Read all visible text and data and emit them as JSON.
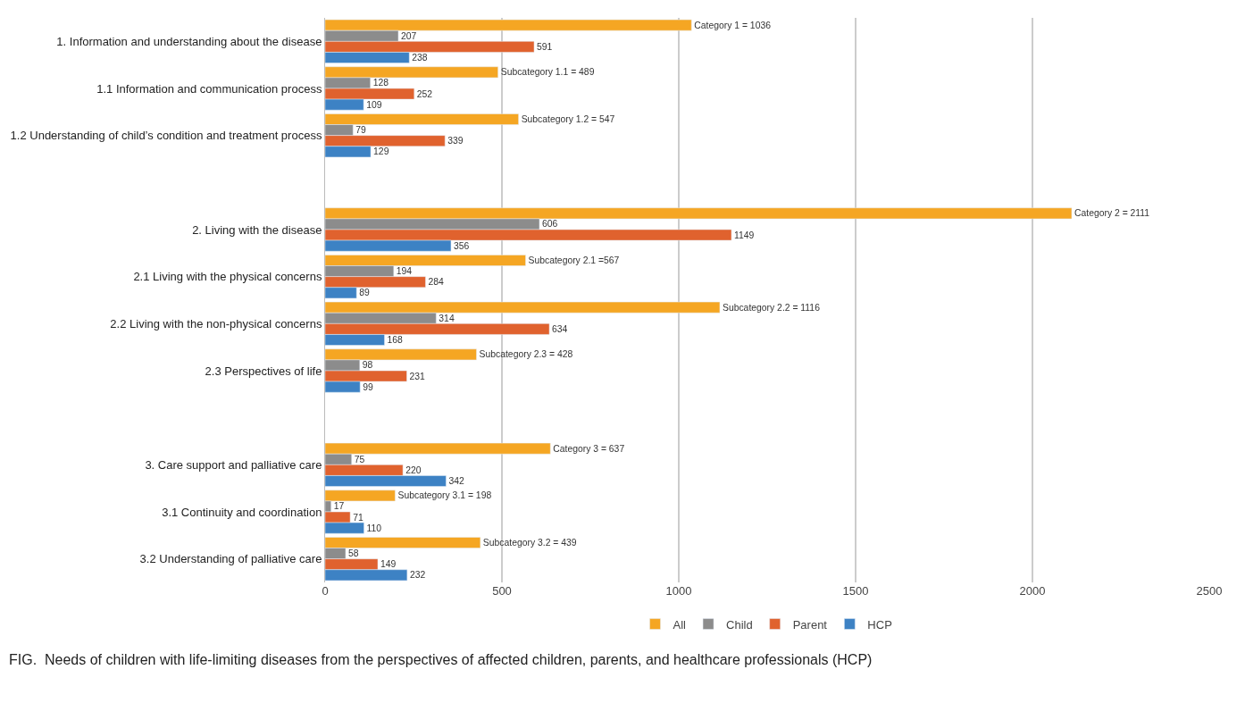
{
  "chart_data": {
    "type": "bar",
    "orientation": "horizontal",
    "categories": [
      "1. Information and understanding about the disease",
      "1.1 Information and communication process",
      "1.2 Understanding of child’s condition and treatment process",
      null,
      "2. Living with the disease",
      "2.1 Living with the physical concerns",
      "2.2 Living with the non-physical concerns",
      "2.3 Perspectives of life",
      null,
      "3. Care support and palliative care",
      "3.1 Continuity and coordination",
      "3.2 Understanding of palliative care"
    ],
    "series": [
      {
        "name": "All",
        "color": "#f5a623",
        "values": [
          1036,
          489,
          547,
          null,
          2111,
          567,
          1116,
          428,
          null,
          637,
          198,
          439
        ],
        "value_labels": [
          "Category 1 = 1036",
          "Subcategory 1.1 = 489",
          "Subcategory 1.2 = 547",
          null,
          "Category 2 = 2111",
          "Subcategory 2.1 =567",
          "Subcategory 2.2 = 1116",
          "Subcategory 2.3 = 428",
          null,
          "Category 3 = 637",
          "Subcategory 3.1 = 198",
          "Subcategory 3.2 = 439"
        ]
      },
      {
        "name": "Child",
        "color": "#8c8c8c",
        "values": [
          207,
          128,
          79,
          null,
          606,
          194,
          314,
          98,
          null,
          75,
          17,
          58
        ],
        "value_labels": [
          "207",
          "128",
          "79",
          null,
          "606",
          "194",
          "314",
          "98",
          null,
          "75",
          "17",
          "58"
        ]
      },
      {
        "name": "Parent",
        "color": "#e0622e",
        "values": [
          591,
          252,
          339,
          null,
          1149,
          284,
          634,
          231,
          null,
          220,
          71,
          149
        ],
        "value_labels": [
          "591",
          "252",
          "339",
          null,
          "1149",
          "284",
          "634",
          "231",
          null,
          "220",
          "71",
          "149"
        ]
      },
      {
        "name": "HCP",
        "color": "#3d82c4",
        "values": [
          238,
          109,
          129,
          null,
          356,
          89,
          168,
          99,
          null,
          342,
          110,
          232
        ],
        "value_labels": [
          "238",
          "109",
          "129",
          null,
          "356",
          "89",
          "168",
          "99",
          null,
          "342",
          "110",
          "232"
        ]
      }
    ],
    "xlim": [
      0,
      2500
    ],
    "xticks": [
      0,
      500,
      1000,
      1500,
      2000,
      2500
    ],
    "grid": "x",
    "legend": "bottom",
    "annotations": [
      "FIG.  Needs of children with life-limiting diseases from the perspectives of affected children, parents, and healthcare professionals (HCP)"
    ]
  }
}
